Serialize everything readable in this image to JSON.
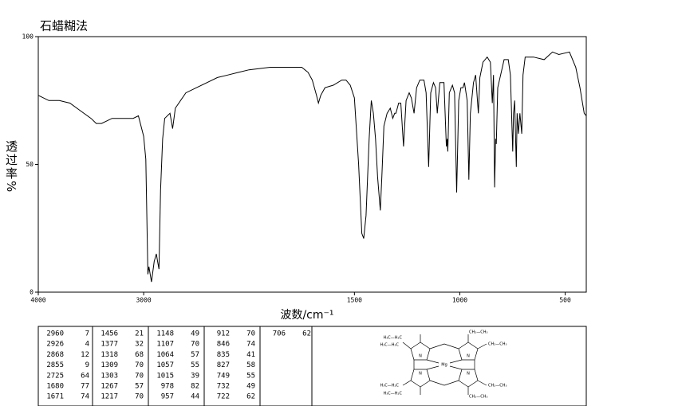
{
  "chart_data": {
    "type": "line",
    "title": "石蜡糊法",
    "x_label": "波数/cm⁻¹",
    "y_label": "透过率%",
    "color": "#000000",
    "xlim": [
      4000,
      400
    ],
    "x_scale_change": {
      "at": 2000,
      "factor": 2
    },
    "ylim": [
      0,
      100
    ],
    "xticks": [
      4000,
      3000,
      1500,
      1000,
      500
    ],
    "yticks": [
      0,
      50,
      100
    ],
    "x": [
      4000,
      3900,
      3800,
      3700,
      3600,
      3500,
      3450,
      3400,
      3300,
      3200,
      3100,
      3050,
      3000,
      2980,
      2960,
      2950,
      2926,
      2900,
      2880,
      2868,
      2855,
      2840,
      2820,
      2800,
      2750,
      2725,
      2700,
      2600,
      2500,
      2400,
      2300,
      2200,
      2100,
      2000,
      1900,
      1800,
      1750,
      1720,
      1700,
      1680,
      1671,
      1660,
      1640,
      1600,
      1560,
      1540,
      1520,
      1500,
      1480,
      1465,
      1456,
      1445,
      1430,
      1420,
      1410,
      1400,
      1390,
      1377,
      1370,
      1360,
      1345,
      1330,
      1318,
      1309,
      1303,
      1290,
      1280,
      1267,
      1255,
      1240,
      1230,
      1217,
      1205,
      1190,
      1170,
      1160,
      1148,
      1138,
      1125,
      1115,
      1107,
      1095,
      1075,
      1064,
      1060,
      1057,
      1050,
      1035,
      1025,
      1015,
      1005,
      995,
      985,
      978,
      965,
      957,
      950,
      935,
      925,
      912,
      905,
      890,
      870,
      855,
      846,
      840,
      835,
      830,
      827,
      820,
      790,
      770,
      760,
      749,
      745,
      740,
      732,
      728,
      722,
      715,
      706,
      700,
      690,
      650,
      600,
      560,
      530,
      480,
      450,
      430,
      410,
      400
    ],
    "values": [
      77,
      75,
      75,
      74,
      71,
      68,
      66,
      66,
      68,
      68,
      68,
      69,
      61,
      52,
      7,
      10,
      4,
      12,
      15,
      12,
      9,
      40,
      60,
      68,
      70,
      64,
      72,
      78,
      80,
      82,
      84,
      85,
      86,
      87,
      88,
      88,
      88,
      86,
      83,
      77,
      74,
      77,
      80,
      81,
      83,
      83,
      81,
      76,
      50,
      23,
      21,
      30,
      60,
      75,
      70,
      60,
      45,
      32,
      45,
      65,
      70,
      72,
      68,
      70,
      70,
      74,
      74,
      57,
      75,
      78,
      76,
      70,
      80,
      83,
      83,
      78,
      49,
      78,
      82,
      80,
      70,
      82,
      82,
      57,
      60,
      55,
      78,
      81,
      78,
      39,
      75,
      80,
      80,
      82,
      75,
      44,
      70,
      82,
      85,
      70,
      84,
      90,
      92,
      90,
      74,
      85,
      41,
      60,
      58,
      80,
      91,
      91,
      85,
      55,
      70,
      75,
      49,
      70,
      62,
      70,
      62,
      85,
      92,
      92,
      91,
      94,
      93,
      94,
      88,
      80,
      70,
      69
    ]
  },
  "peak_table": {
    "columns": [
      [
        [
          2960,
          7
        ],
        [
          2926,
          4
        ],
        [
          2868,
          12
        ],
        [
          2855,
          9
        ],
        [
          2725,
          64
        ],
        [
          1680,
          77
        ],
        [
          1671,
          74
        ]
      ],
      [
        [
          1456,
          21
        ],
        [
          1377,
          32
        ],
        [
          1318,
          68
        ],
        [
          1309,
          70
        ],
        [
          1303,
          70
        ],
        [
          1267,
          57
        ],
        [
          1217,
          70
        ]
      ],
      [
        [
          1148,
          49
        ],
        [
          1107,
          70
        ],
        [
          1064,
          57
        ],
        [
          1057,
          55
        ],
        [
          1015,
          39
        ],
        [
          978,
          82
        ],
        [
          957,
          44
        ]
      ],
      [
        [
          912,
          70
        ],
        [
          846,
          74
        ],
        [
          835,
          41
        ],
        [
          827,
          58
        ],
        [
          749,
          55
        ],
        [
          732,
          49
        ],
        [
          722,
          62
        ]
      ],
      [
        [
          706,
          62
        ]
      ]
    ]
  },
  "structure": {
    "labels": [
      "H₃C—H₂C",
      "CH₂—CH₃",
      "H₃C—H₂C",
      "CH₂—CH₃",
      "H₃C—H₂C",
      "CH₂—CH₃",
      "H₃C—H₂C",
      "CH₂—CH₃",
      "Mg",
      "N",
      "N",
      "N",
      "N"
    ]
  }
}
